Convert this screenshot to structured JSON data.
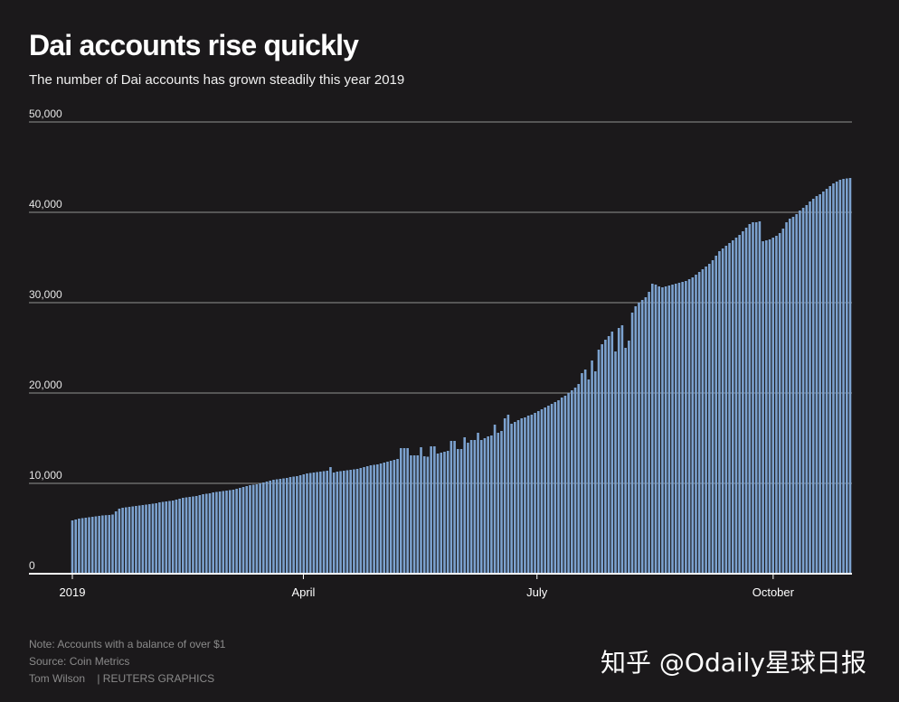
{
  "header": {
    "title": "Dai accounts rise quickly",
    "subtitle": "The number of Dai accounts has grown steadily this year 2019"
  },
  "footer": {
    "note": "Note: Accounts with a balance of over $1",
    "source": "Source: Coin Metrics",
    "credit": "Tom Wilson    | REUTERS GRAPHICS"
  },
  "watermark": "知乎 @Odaily星球日报",
  "colors": {
    "background": "#1b191b",
    "bar": "#7ca2cf",
    "grid": "#6a6a6a"
  },
  "chart_data": {
    "type": "bar",
    "title": "Dai accounts rise quickly",
    "subtitle": "The number of Dai accounts has grown steadily this year 2019",
    "x_range": [
      "2019-01-01",
      "2019-10-31"
    ],
    "ylim": [
      0,
      50000
    ],
    "yticks": [
      0,
      10000,
      20000,
      30000,
      40000,
      50000
    ],
    "ytick_labels": [
      "0",
      "10,000",
      "20,000",
      "30,000",
      "40,000",
      "50,000"
    ],
    "xticks": [
      {
        "date": "2019-01-01",
        "label": "2019"
      },
      {
        "date": "2019-04-01",
        "label": "April"
      },
      {
        "date": "2019-07-01",
        "label": "July"
      },
      {
        "date": "2019-10-01",
        "label": "October"
      }
    ],
    "grid": true,
    "series": [
      {
        "values": [
          5900,
          6000,
          6100,
          6150,
          6200,
          6250,
          6300,
          6350,
          6400,
          6450,
          6480,
          6500,
          6550,
          6900,
          7200,
          7300,
          7350,
          7400,
          7450,
          7500,
          7550,
          7600,
          7650,
          7700,
          7750,
          7800,
          7900,
          7950,
          8000,
          8050,
          8100,
          8200,
          8300,
          8400,
          8450,
          8500,
          8550,
          8600,
          8700,
          8800,
          8850,
          8900,
          9000,
          9050,
          9100,
          9150,
          9200,
          9250,
          9300,
          9400,
          9500,
          9600,
          9700,
          9800,
          9850,
          9900,
          10000,
          10100,
          10200,
          10300,
          10400,
          10450,
          10500,
          10550,
          10600,
          10700,
          10750,
          10800,
          10900,
          11000,
          11100,
          11150,
          11200,
          11250,
          11300,
          11350,
          11400,
          11800,
          11200,
          11300,
          11350,
          11400,
          11450,
          11500,
          11550,
          11600,
          11700,
          11800,
          11900,
          12000,
          12050,
          12100,
          12200,
          12300,
          12400,
          12500,
          12600,
          12700,
          13900,
          13900,
          13900,
          13100,
          13100,
          13100,
          14000,
          13000,
          12950,
          14100,
          14100,
          13300,
          13400,
          13500,
          13600,
          14700,
          14700,
          13800,
          13800,
          15100,
          14500,
          14800,
          14800,
          15600,
          14800,
          15000,
          15200,
          15300,
          16500,
          15600,
          15800,
          17200,
          17600,
          16600,
          16800,
          17000,
          17200,
          17300,
          17500,
          17600,
          17800,
          18000,
          18200,
          18400,
          18600,
          18800,
          19000,
          19200,
          19500,
          19700,
          20000,
          20300,
          20600,
          21000,
          22200,
          22600,
          21500,
          23600,
          22400,
          24800,
          25400,
          25900,
          26300,
          26800,
          24600,
          27200,
          27500,
          25000,
          25800,
          28900,
          29600,
          30000,
          30300,
          30600,
          31200,
          32100,
          32000,
          31800,
          31700,
          31800,
          31900,
          32000,
          32100,
          32200,
          32300,
          32400,
          32600,
          32800,
          33100,
          33400,
          33700,
          34000,
          34300,
          34700,
          35200,
          35700,
          36000,
          36300,
          36600,
          36900,
          37200,
          37500,
          37900,
          38300,
          38700,
          38900,
          38900,
          39000,
          36800,
          36900,
          37000,
          37200,
          37400,
          37700,
          38200,
          38900,
          39300,
          39500,
          39800,
          40200,
          40500,
          40800,
          41200,
          41500,
          41800,
          42000,
          42300,
          42600,
          42900,
          43200,
          43400,
          43600,
          43700,
          43750,
          43800
        ]
      }
    ]
  }
}
